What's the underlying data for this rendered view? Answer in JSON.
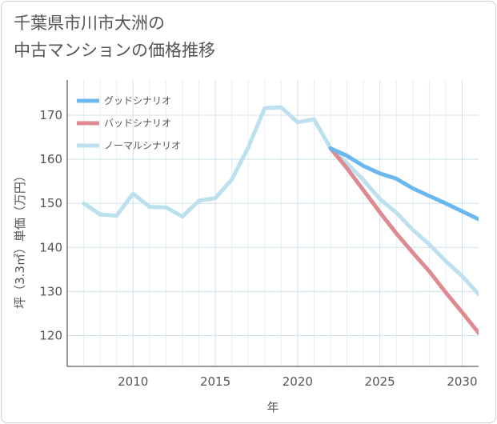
{
  "title_line1": "千葉県市川市大洲の",
  "title_line2": "中古マンションの価格推移",
  "chart_data": {
    "type": "line",
    "title": "千葉県市川市大洲の中古マンションの価格推移",
    "xlabel": "年",
    "ylabel": "坪（3.3㎡）単価（万円）",
    "xlim": [
      2006,
      2031
    ],
    "ylim": [
      113,
      178
    ],
    "xticks": [
      2010,
      2015,
      2020,
      2025,
      2030
    ],
    "yticks": [
      120,
      130,
      140,
      150,
      160,
      170
    ],
    "grid": true,
    "legend_position": "top-left",
    "series": [
      {
        "name": "グッドシナリオ",
        "color": "#6cb8ee",
        "x": [
          2022,
          2023,
          2024,
          2025,
          2026,
          2027,
          2028,
          2029,
          2030,
          2031
        ],
        "y": [
          162.5,
          160.8,
          158.5,
          156.8,
          155.6,
          153.4,
          151.7,
          150.0,
          148.2,
          146.4
        ]
      },
      {
        "name": "バッドシナリオ",
        "color": "#dd8a90",
        "x": [
          2022,
          2023,
          2024,
          2025,
          2026,
          2027,
          2028,
          2029,
          2030,
          2031
        ],
        "y": [
          162.5,
          158.0,
          153.0,
          148.0,
          143.2,
          138.8,
          134.6,
          129.8,
          125.3,
          120.6
        ]
      },
      {
        "name": "ノーマルシナリオ",
        "color": "#bde0ef",
        "x": [
          2007,
          2008,
          2009,
          2010,
          2011,
          2012,
          2013,
          2014,
          2015,
          2016,
          2017,
          2018,
          2019,
          2020,
          2021,
          2022,
          2023,
          2024,
          2025,
          2026,
          2027,
          2028,
          2029,
          2030,
          2031
        ],
        "y": [
          150.0,
          147.5,
          147.2,
          152.2,
          149.2,
          149.1,
          147.0,
          150.6,
          151.2,
          155.4,
          162.7,
          171.6,
          171.8,
          168.4,
          169.1,
          162.5,
          159.1,
          155.3,
          151.0,
          147.9,
          144.0,
          140.7,
          136.9,
          133.5,
          129.4
        ]
      }
    ]
  }
}
